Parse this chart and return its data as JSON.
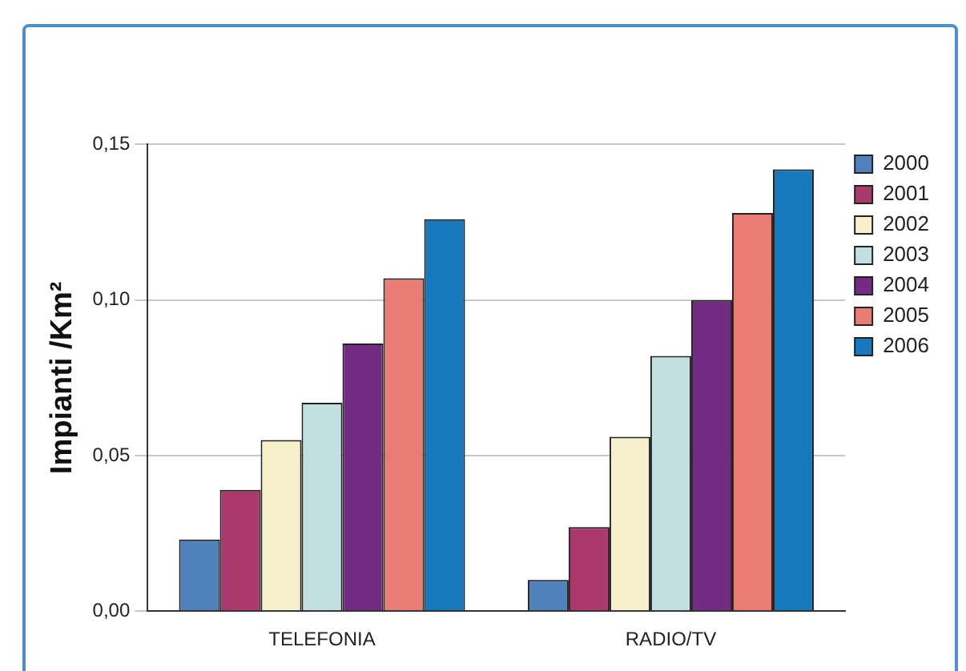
{
  "chart_data": {
    "type": "bar",
    "ylabel": "Impianti /Km²",
    "categories": [
      "TELEFONIA",
      "RADIO/TV"
    ],
    "series": [
      {
        "name": "2000",
        "color": "#4f81bd",
        "values": [
          0.023,
          0.01
        ]
      },
      {
        "name": "2001",
        "color": "#aa3a6b",
        "values": [
          0.039,
          0.027
        ]
      },
      {
        "name": "2002",
        "color": "#f6f0cd",
        "values": [
          0.055,
          0.056
        ]
      },
      {
        "name": "2003",
        "color": "#c2e0de",
        "values": [
          0.067,
          0.082
        ]
      },
      {
        "name": "2004",
        "color": "#732b83",
        "values": [
          0.086,
          0.1
        ]
      },
      {
        "name": "2005",
        "color": "#e97d74",
        "values": [
          0.107,
          0.128
        ]
      },
      {
        "name": "2006",
        "color": "#1679bd",
        "values": [
          0.126,
          0.142
        ]
      }
    ],
    "ylim": [
      0,
      0.15
    ],
    "yticks": [
      {
        "value": 0,
        "label": "0,00"
      },
      {
        "value": 0.05,
        "label": "0,05"
      },
      {
        "value": 0.1,
        "label": "0,10"
      },
      {
        "value": 0.15,
        "label": "0,15"
      }
    ],
    "grid": "y",
    "legend": "right"
  }
}
